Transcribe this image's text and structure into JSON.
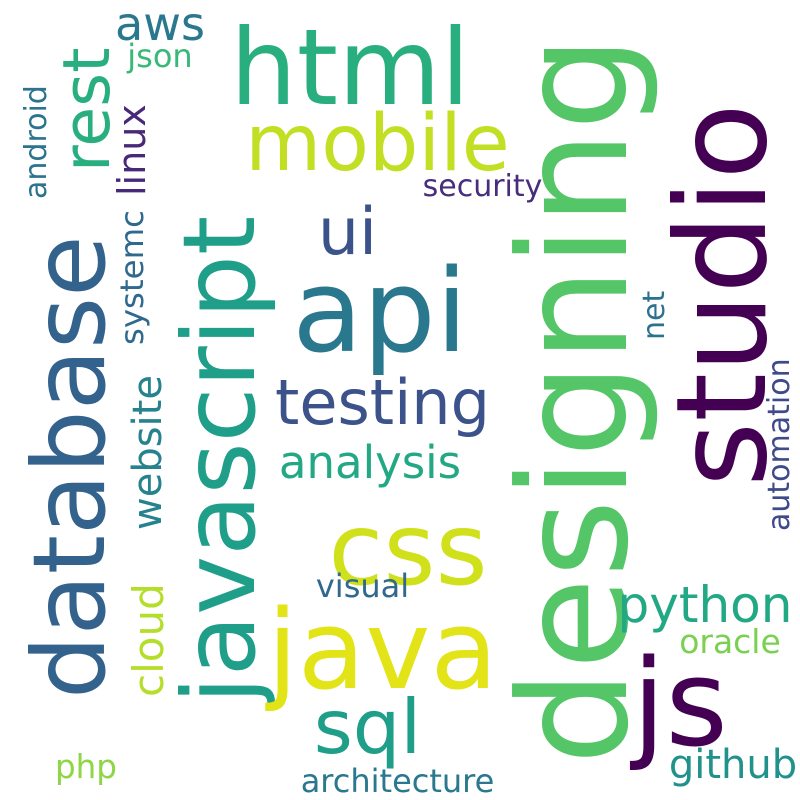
{
  "background_color": "#ffffff",
  "words": [
    {
      "text": "designing",
      "color": "#55c667",
      "orientation": "vertical"
    },
    {
      "text": "studio",
      "color": "#440154",
      "orientation": "vertical"
    },
    {
      "text": "javascript",
      "color": "#1f9e89",
      "orientation": "vertical"
    },
    {
      "text": "database",
      "color": "#33638d",
      "orientation": "vertical"
    },
    {
      "text": "html",
      "color": "#29af7f",
      "orientation": "horizontal"
    },
    {
      "text": "api",
      "color": "#2a788e",
      "orientation": "horizontal"
    },
    {
      "text": "java",
      "color": "#e3e418",
      "orientation": "horizontal"
    },
    {
      "text": "css",
      "color": "#d0e11c",
      "orientation": "horizontal"
    },
    {
      "text": "js",
      "color": "#440154",
      "orientation": "horizontal"
    },
    {
      "text": "mobile",
      "color": "#c2df23",
      "orientation": "horizontal"
    },
    {
      "text": "testing",
      "color": "#3b528b",
      "orientation": "horizontal"
    },
    {
      "text": "rest",
      "color": "#29af7f",
      "orientation": "vertical"
    },
    {
      "text": "ui",
      "color": "#3b528b",
      "orientation": "horizontal"
    },
    {
      "text": "sql",
      "color": "#1f9e89",
      "orientation": "horizontal"
    },
    {
      "text": "analysis",
      "color": "#22a884",
      "orientation": "horizontal"
    },
    {
      "text": "python",
      "color": "#22a884",
      "orientation": "horizontal"
    },
    {
      "text": "aws",
      "color": "#2a788e",
      "orientation": "horizontal"
    },
    {
      "text": "cloud",
      "color": "#b5de2b",
      "orientation": "vertical"
    },
    {
      "text": "website",
      "color": "#26828e",
      "orientation": "vertical"
    },
    {
      "text": "systemc",
      "color": "#31688e",
      "orientation": "vertical"
    },
    {
      "text": "linux",
      "color": "#482878",
      "orientation": "vertical"
    },
    {
      "text": "android",
      "color": "#2c738e",
      "orientation": "vertical"
    },
    {
      "text": "json",
      "color": "#38b977",
      "orientation": "horizontal"
    },
    {
      "text": "security",
      "color": "#472d7b",
      "orientation": "horizontal"
    },
    {
      "text": "automation",
      "color": "#3e4a89",
      "orientation": "vertical"
    },
    {
      "text": "net",
      "color": "#2c728e",
      "orientation": "vertical"
    },
    {
      "text": "visual",
      "color": "#31688e",
      "orientation": "horizontal"
    },
    {
      "text": "oracle",
      "color": "#7ad151",
      "orientation": "horizontal"
    },
    {
      "text": "php",
      "color": "#8ed645",
      "orientation": "horizontal"
    },
    {
      "text": "architecture",
      "color": "#2a788e",
      "orientation": "horizontal"
    },
    {
      "text": "github",
      "color": "#21918c",
      "orientation": "horizontal"
    }
  ]
}
